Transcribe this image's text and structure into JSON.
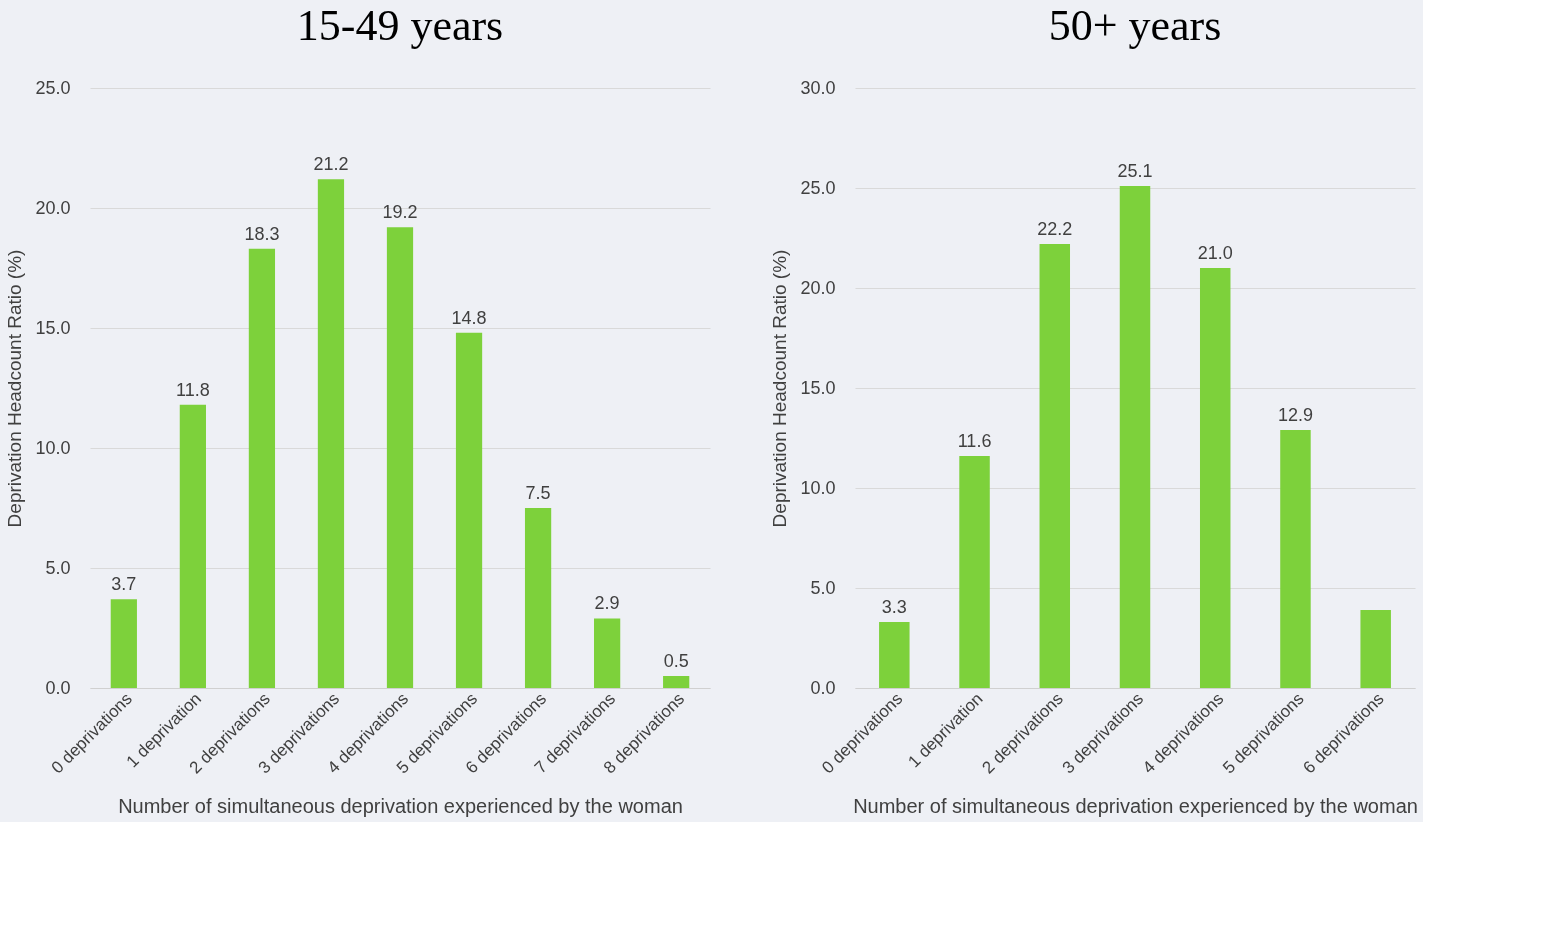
{
  "chart_data": [
    {
      "type": "bar",
      "title": "15-49 years",
      "xlabel": "Number of simultaneous deprivation experienced by the woman",
      "ylabel": "Deprivation Headcount Ratio (%)",
      "categories": [
        "0 deprivations",
        "1 deprivation",
        "2 deprivations",
        "3 deprivations",
        "4 deprivations",
        "5 deprivations",
        "6 deprivations",
        "7 deprivations",
        "8 deprivations"
      ],
      "values": [
        3.7,
        11.8,
        18.3,
        21.2,
        19.2,
        14.8,
        7.5,
        2.9,
        0.5
      ],
      "color": "#7dd13b",
      "ylim": [
        0,
        25
      ],
      "yticks": [
        {
          "value": 0,
          "label": "0.0"
        },
        {
          "value": 5,
          "label": "5.0"
        },
        {
          "value": 10,
          "label": "10.0"
        },
        {
          "value": 15,
          "label": "15.0"
        },
        {
          "value": 20,
          "label": "20.0"
        },
        {
          "value": 25,
          "label": "25.0"
        }
      ],
      "grid": "y",
      "data_labels": true
    },
    {
      "type": "bar",
      "title": "50+ years",
      "xlabel": "Number of simultaneous deprivation experienced by the woman",
      "ylabel": "Deprivation Headcount Ratio (%)",
      "categories": [
        "0 deprivations",
        "1 deprivation",
        "2 deprivations",
        "3 deprivations",
        "4 deprivations",
        "5 deprivations",
        "6 deprivations"
      ],
      "values": [
        3.3,
        11.6,
        22.2,
        25.1,
        21.0,
        12.9,
        3.9
      ],
      "color": "#7dd13b",
      "value_labels": [
        "3.3",
        "11.6",
        "22.2",
        "25.1",
        "21.0",
        "12.9",
        null
      ],
      "ylim": [
        0,
        30
      ],
      "yticks": [
        {
          "value": 0,
          "label": "0.0"
        },
        {
          "value": 5,
          "label": "5.0"
        },
        {
          "value": 10,
          "label": "10.0"
        },
        {
          "value": 15,
          "label": "15.0"
        },
        {
          "value": 20,
          "label": "20.0"
        },
        {
          "value": 25,
          "label": "25.0"
        },
        {
          "value": 30,
          "label": "30.0"
        }
      ],
      "grid": "y"
    }
  ]
}
